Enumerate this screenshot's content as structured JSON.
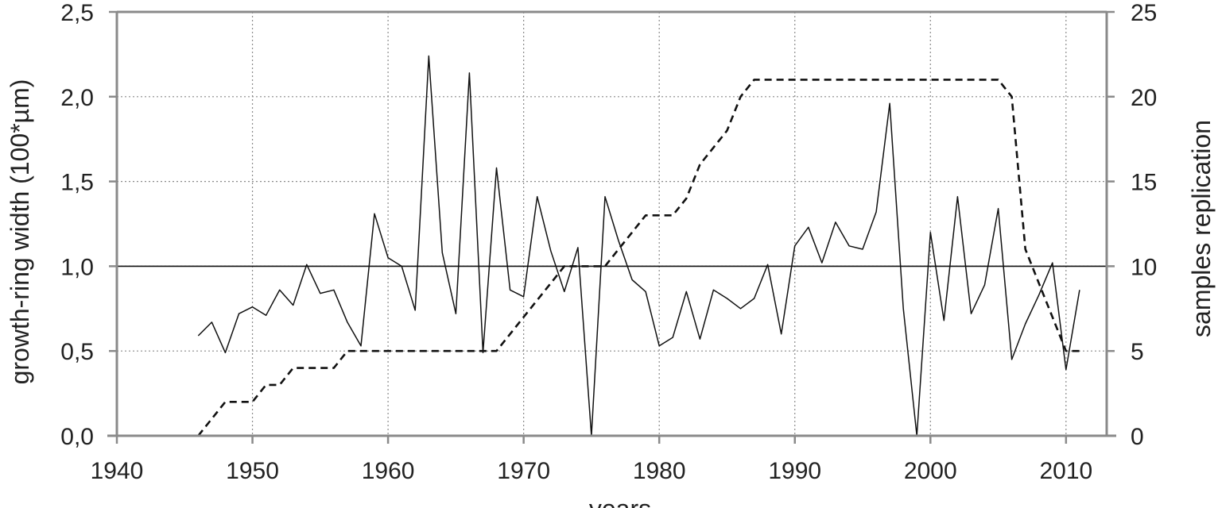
{
  "chart_data": {
    "type": "line",
    "title": "",
    "xlabel": "years",
    "ylabel_left": "growth-ring width (100*µm)",
    "ylabel_right": "samples replication",
    "xlim": [
      1940,
      2013
    ],
    "ylim_left": [
      0,
      2.5
    ],
    "ylim_right": [
      0,
      25
    ],
    "x_ticks": [
      1940,
      1950,
      1960,
      1970,
      1980,
      1990,
      2000,
      2010
    ],
    "x_tick_labels": [
      "1940",
      "1950",
      "1960",
      "1970",
      "1980",
      "1990",
      "2000",
      "2010"
    ],
    "y_left_ticks": [
      0,
      0.5,
      1.0,
      1.5,
      2.0,
      2.5
    ],
    "y_left_tick_labels": [
      "0,0",
      "0,5",
      "1,0",
      "1,5",
      "2,0",
      "2,5"
    ],
    "y_right_ticks": [
      0,
      5,
      10,
      15,
      20,
      25
    ],
    "y_right_tick_labels": [
      "0",
      "5",
      "10",
      "15",
      "20",
      "25"
    ],
    "grid": "dotted",
    "reference_line_left": 1.0,
    "series": [
      {
        "axis": "left",
        "style": "solid",
        "x": [
          1946,
          1947,
          1948,
          1949,
          1950,
          1951,
          1952,
          1953,
          1954,
          1955,
          1956,
          1957,
          1958,
          1959,
          1960,
          1961,
          1962,
          1963,
          1964,
          1965,
          1966,
          1967,
          1968,
          1969,
          1970,
          1971,
          1972,
          1973,
          1974,
          1975,
          1976,
          1977,
          1978,
          1979,
          1980,
          1981,
          1982,
          1983,
          1984,
          1985,
          1986,
          1987,
          1988,
          1989,
          1990,
          1991,
          1992,
          1993,
          1994,
          1995,
          1996,
          1997,
          1998,
          1999,
          2000,
          2001,
          2002,
          2003,
          2004,
          2005,
          2006,
          2007,
          2008,
          2009,
          2010,
          2011
        ],
        "values": [
          0.59,
          0.67,
          0.49,
          0.72,
          0.76,
          0.71,
          0.86,
          0.77,
          1.01,
          0.84,
          0.86,
          0.67,
          0.53,
          1.31,
          1.05,
          1.0,
          0.74,
          2.24,
          1.08,
          0.72,
          2.14,
          0.49,
          1.58,
          0.86,
          0.82,
          1.41,
          1.09,
          0.85,
          1.11,
          0.0,
          1.41,
          1.15,
          0.92,
          0.85,
          0.53,
          0.58,
          0.85,
          0.57,
          0.86,
          0.81,
          0.75,
          0.81,
          1.01,
          0.6,
          1.12,
          1.23,
          1.02,
          1.26,
          1.12,
          1.1,
          1.32,
          1.96,
          0.75,
          0.0,
          1.2,
          0.68,
          1.41,
          0.72,
          0.89,
          1.34,
          0.45,
          0.66,
          0.83,
          1.02,
          0.39,
          0.86
        ]
      },
      {
        "axis": "right",
        "style": "dashed",
        "x": [
          1946,
          1947,
          1948,
          1949,
          1950,
          1951,
          1952,
          1953,
          1954,
          1955,
          1956,
          1957,
          1958,
          1959,
          1960,
          1961,
          1962,
          1963,
          1964,
          1965,
          1966,
          1967,
          1968,
          1969,
          1970,
          1971,
          1972,
          1973,
          1974,
          1975,
          1976,
          1977,
          1978,
          1979,
          1980,
          1981,
          1982,
          1983,
          1984,
          1985,
          1986,
          1987,
          1988,
          1989,
          1990,
          1991,
          1992,
          1993,
          1994,
          1995,
          1996,
          1997,
          1998,
          1999,
          2000,
          2001,
          2002,
          2003,
          2004,
          2005,
          2006,
          2007,
          2008,
          2009,
          2010,
          2011
        ],
        "values": [
          0,
          1,
          2,
          2,
          2,
          3,
          3,
          4,
          4,
          4,
          4,
          5,
          5,
          5,
          5,
          5,
          5,
          5,
          5,
          5,
          5,
          5,
          5,
          6,
          7,
          8,
          9,
          10,
          10,
          10,
          10,
          11,
          12,
          13,
          13,
          13,
          14,
          16,
          17,
          18,
          20,
          21,
          21,
          21,
          21,
          21,
          21,
          21,
          21,
          21,
          21,
          21,
          21,
          21,
          21,
          21,
          21,
          21,
          21,
          21,
          20,
          11,
          9,
          7,
          5,
          5
        ]
      }
    ]
  }
}
